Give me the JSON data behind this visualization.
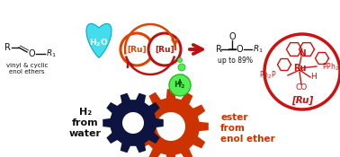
{
  "bg": "#ffffff",
  "dark_red": "#bb1111",
  "orange": "#dd4400",
  "navy": "#0d1440",
  "teal_fill": "#44ddee",
  "teal_edge": "#00aacc",
  "green_fill": "#55ee55",
  "green_edge": "#22bb22",
  "black": "#111111",
  "ru_red": "#cc1111",
  "gear_navy": "#0d1440",
  "gear_orange": "#cc3300",
  "enol_label": "vinyl & cyclic\nenol ethers",
  "yield_label": "up to 89%",
  "h2_label": "H₂\nfrom\nwater",
  "ester_label": "ester\nfrom\nenol ether"
}
